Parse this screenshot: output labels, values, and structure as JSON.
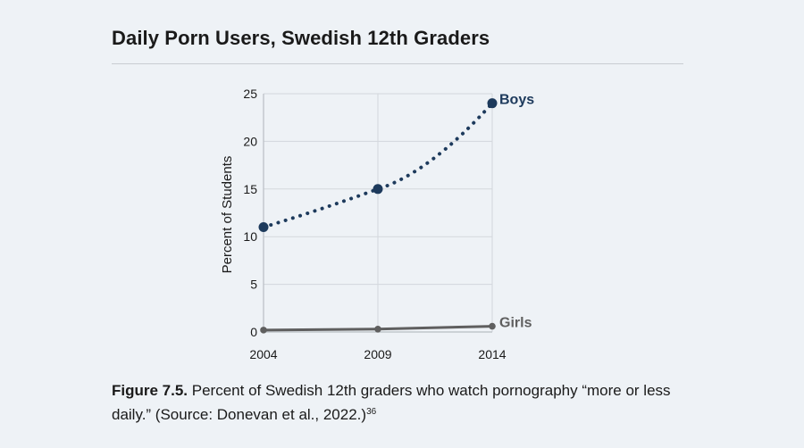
{
  "header": {
    "title": "Daily Porn Users, Swedish 12th Graders"
  },
  "caption": {
    "label": "Figure 7.5.",
    "text": " Percent of Swedish 12th graders who watch pornography “more or less daily.” (Source: Donevan et al., 2022.)",
    "footnote": "36"
  },
  "chart_data": {
    "type": "line",
    "title": "",
    "xlabel": "",
    "ylabel": "Percent of Students",
    "x": [
      2004,
      2009,
      2014
    ],
    "x_tick_labels": [
      "2004",
      "2009",
      "2014"
    ],
    "ylim": [
      0,
      25
    ],
    "y_ticks": [
      0,
      5,
      10,
      15,
      20,
      25
    ],
    "grid": true,
    "series": [
      {
        "name": "Boys",
        "values": [
          11,
          15,
          24
        ],
        "color": "#1d3a5c",
        "style": "dotted",
        "markers": true
      },
      {
        "name": "Girls",
        "values": [
          0.2,
          0.3,
          0.6
        ],
        "color": "#5f5f5f",
        "style": "solid",
        "markers": true
      }
    ]
  }
}
